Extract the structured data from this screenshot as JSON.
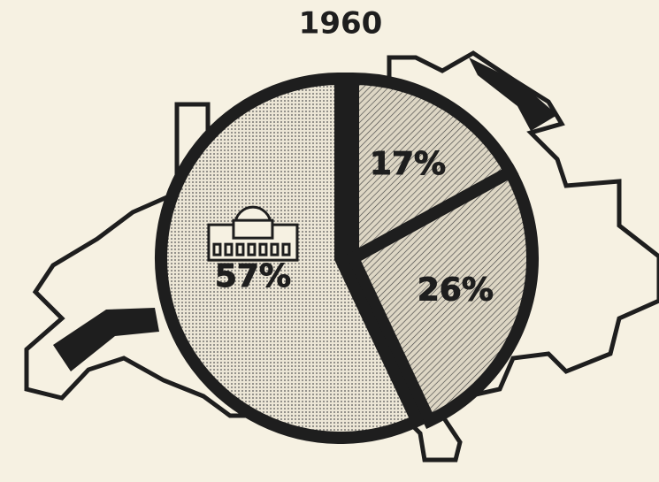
{
  "chart_data": {
    "type": "pie",
    "title": "1960",
    "values": [
      17,
      26,
      57
    ],
    "value_labels": [
      "17%",
      "26%",
      "57%"
    ]
  }
}
